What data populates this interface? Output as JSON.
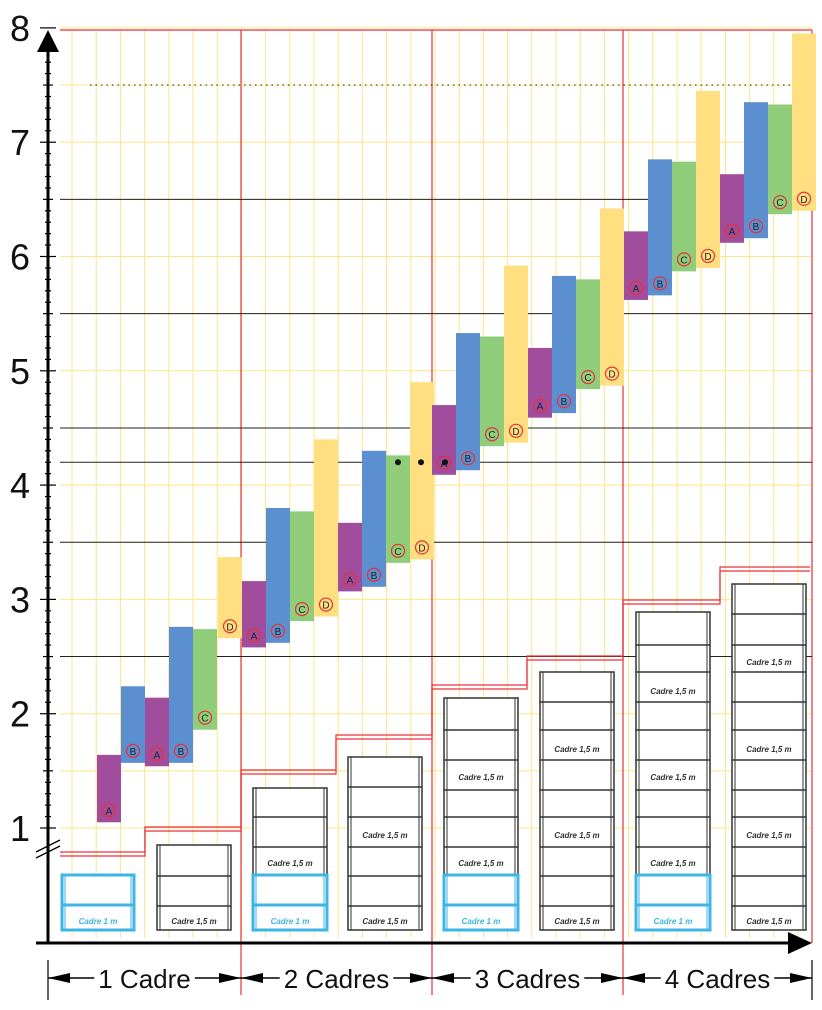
{
  "chart_data": {
    "type": "bar",
    "y_ticks": [
      "1",
      "2",
      "3",
      "4",
      "5",
      "6",
      "7",
      "8"
    ],
    "ylim": [
      1,
      8
    ],
    "groups": [
      "1 Cadre",
      "2 Cadres",
      "3 Cadres",
      "4 Cadres"
    ],
    "colors": {
      "A": "#a04d9d",
      "B": "#5b8fcf",
      "C": "#8fcd7a",
      "D": "#ffdf80",
      "frame_blue": "#3cb6e4",
      "grid_yellow": "#ffe48a",
      "grid_red": "#e8303a"
    },
    "markers": {
      "A": "A",
      "B": "B",
      "C": "C",
      "D": "D"
    },
    "series": [
      {
        "group": "1 Cadre",
        "bars": [
          {
            "key": "A",
            "low": 1.05,
            "high": 1.64
          },
          {
            "key": "B",
            "low": 1.57,
            "high": 2.24
          },
          {
            "key": "A",
            "low": 1.54,
            "high": 2.14
          },
          {
            "key": "B",
            "low": 1.57,
            "high": 2.76
          },
          {
            "key": "C",
            "low": 1.86,
            "high": 2.74
          }
        ]
      },
      {
        "group": "2 Cadres",
        "bars": [
          {
            "key": "D",
            "low": 2.66,
            "high": 3.37
          },
          {
            "key": "A",
            "low": 2.58,
            "high": 3.16
          },
          {
            "key": "B",
            "low": 2.62,
            "high": 3.8
          },
          {
            "key": "C",
            "low": 2.81,
            "high": 3.77
          },
          {
            "key": "D",
            "low": 2.85,
            "high": 4.4
          },
          {
            "key": "A",
            "low": 3.07,
            "high": 3.67
          },
          {
            "key": "B",
            "low": 3.11,
            "high": 4.3
          },
          {
            "key": "C",
            "low": 3.32,
            "high": 4.26
          },
          {
            "key": "D",
            "low": 3.35,
            "high": 4.9
          }
        ]
      },
      {
        "group": "3 Cadres",
        "bars": [
          {
            "key": "A",
            "low": 4.09,
            "high": 4.7
          },
          {
            "key": "B",
            "low": 4.13,
            "high": 5.33
          },
          {
            "key": "C",
            "low": 4.34,
            "high": 5.3
          },
          {
            "key": "D",
            "low": 4.37,
            "high": 5.92
          },
          {
            "key": "A",
            "low": 4.59,
            "high": 5.2
          },
          {
            "key": "B",
            "low": 4.63,
            "high": 5.83
          },
          {
            "key": "C",
            "low": 4.84,
            "high": 5.8
          },
          {
            "key": "D",
            "low": 4.87,
            "high": 6.42
          }
        ]
      },
      {
        "group": "4 Cadres",
        "bars": [
          {
            "key": "A",
            "low": 5.62,
            "high": 6.22
          },
          {
            "key": "B",
            "low": 5.66,
            "high": 6.85
          },
          {
            "key": "C",
            "low": 5.87,
            "high": 6.83
          },
          {
            "key": "D",
            "low": 5.9,
            "high": 7.45
          },
          {
            "key": "A",
            "low": 6.12,
            "high": 6.72
          },
          {
            "key": "B",
            "low": 6.16,
            "high": 7.35
          },
          {
            "key": "C",
            "low": 6.37,
            "high": 7.33
          },
          {
            "key": "D",
            "low": 6.4,
            "high": 7.95
          }
        ]
      }
    ],
    "reference_lines": [
      2.5,
      3.5,
      4.2,
      4.5,
      5.5,
      6.5
    ],
    "dotted_line": 7.5,
    "highlight_points_y": 4.2,
    "frame_labels": {
      "blue": "Cadre 1 m",
      "white": "Cadre 1,5 m"
    }
  }
}
